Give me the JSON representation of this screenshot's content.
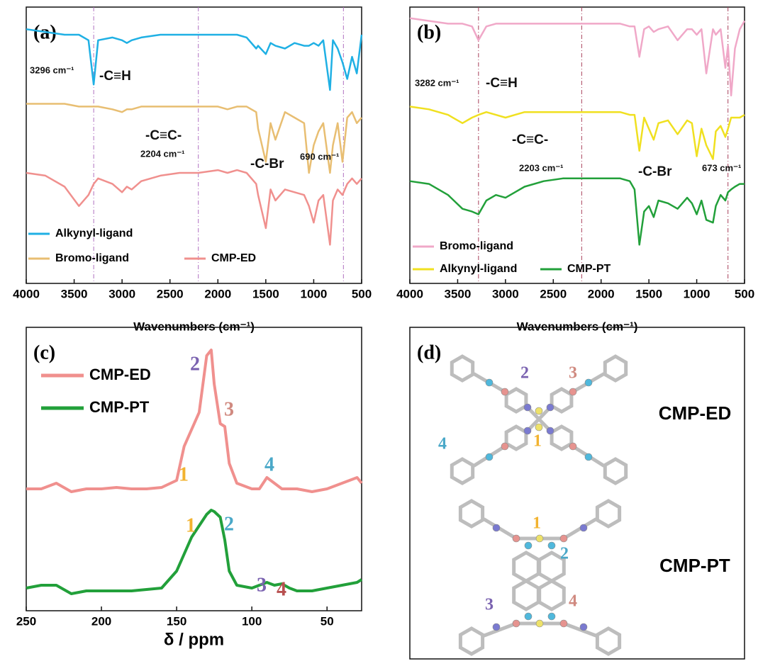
{
  "chart_data": [
    {
      "type": "line",
      "panel_label": "(a)",
      "x_label": "Wavenumbers (cm⁻¹)",
      "x": [
        4000,
        3800,
        3600,
        3450,
        3350,
        3296,
        3250,
        3100,
        3000,
        2950,
        2900,
        2800,
        2600,
        2400,
        2204,
        2000,
        1900,
        1800,
        1700,
        1600,
        1580,
        1500,
        1450,
        1400,
        1300,
        1200,
        1100,
        1050,
        1000,
        950,
        900,
        830,
        800,
        750,
        700,
        650,
        600,
        550,
        500
      ],
      "xlim": [
        4000,
        500
      ],
      "ylim": [
        0,
        100
      ],
      "xticks": [
        4000,
        3500,
        3000,
        2500,
        2000,
        1500,
        1000,
        500
      ],
      "series": [
        {
          "name": "Alkynyl-ligand",
          "color": "#1fb0e4",
          "values": [
            92,
            91,
            90,
            90,
            88,
            72,
            88,
            89,
            88,
            87,
            88,
            89,
            90,
            90,
            90,
            90,
            90,
            90,
            89,
            85,
            86,
            83,
            87,
            86,
            85,
            87,
            86,
            86,
            87,
            86,
            88,
            70,
            88,
            85,
            80,
            74,
            82,
            76,
            90
          ]
        },
        {
          "name": "Bromo-ligand",
          "color": "#e8be72",
          "values": [
            65,
            65,
            65,
            64,
            64,
            64,
            64,
            63,
            62,
            63,
            63,
            64,
            64,
            64,
            64,
            64,
            63,
            64,
            64,
            62,
            56,
            44,
            58,
            52,
            62,
            60,
            58,
            40,
            50,
            55,
            58,
            40,
            50,
            58,
            44,
            60,
            62,
            58,
            60
          ]
        },
        {
          "name": "CMP-ED",
          "color": "#f0908e",
          "values": [
            40,
            39,
            35,
            28,
            32,
            36,
            38,
            36,
            33,
            35,
            34,
            37,
            39,
            40,
            40,
            41,
            40,
            41,
            40,
            36,
            32,
            20,
            34,
            30,
            34,
            33,
            32,
            28,
            22,
            30,
            32,
            14,
            30,
            34,
            32,
            36,
            38,
            36,
            38
          ]
        }
      ],
      "vlines": [
        3296,
        2204,
        690
      ],
      "annotations": [
        {
          "text": "3296 cm⁻¹"
        },
        {
          "text": "-C≡H"
        },
        {
          "text": "-C≡C-"
        },
        {
          "text": "2204 cm⁻¹"
        },
        {
          "text": "-C-Br"
        },
        {
          "text": "690 cm⁻¹"
        }
      ]
    },
    {
      "type": "line",
      "panel_label": "(b)",
      "x_label": "Wavenumbers (cm⁻¹)",
      "x": [
        4000,
        3800,
        3600,
        3450,
        3350,
        3282,
        3200,
        3100,
        3000,
        2900,
        2800,
        2600,
        2400,
        2203,
        2000,
        1900,
        1800,
        1700,
        1650,
        1600,
        1550,
        1500,
        1450,
        1400,
        1300,
        1200,
        1100,
        1050,
        1000,
        950,
        900,
        830,
        800,
        750,
        700,
        673,
        640,
        600,
        550,
        500
      ],
      "xlim": [
        4000,
        500
      ],
      "ylim": [
        0,
        100
      ],
      "xticks": [
        4000,
        3500,
        3000,
        2500,
        2000,
        1500,
        1000,
        500
      ],
      "series": [
        {
          "name": "Bromo-ligand",
          "color": "#f0a8c8",
          "values": [
            96,
            95,
            94,
            94,
            93,
            88,
            93,
            94,
            94,
            94,
            94,
            94,
            94,
            94,
            94,
            94,
            94,
            93,
            93,
            82,
            92,
            93,
            91,
            92,
            93,
            88,
            92,
            92,
            90,
            92,
            76,
            92,
            90,
            92,
            78,
            86,
            68,
            85,
            92,
            95
          ]
        },
        {
          "name": "Alkynyl-ligand",
          "color": "#f0e020",
          "values": [
            64,
            63,
            61,
            58,
            60,
            61,
            62,
            61,
            60,
            61,
            62,
            62,
            62,
            62,
            62,
            62,
            62,
            61,
            61,
            48,
            60,
            56,
            52,
            58,
            59,
            54,
            59,
            58,
            46,
            56,
            50,
            45,
            55,
            57,
            53,
            56,
            60,
            60,
            60,
            61
          ]
        },
        {
          "name": "CMP-PT",
          "color": "#22a03a",
          "values": [
            37,
            36,
            32,
            27,
            26,
            25,
            30,
            32,
            31,
            33,
            35,
            37,
            38,
            38,
            38,
            38,
            38,
            37,
            34,
            14,
            26,
            28,
            24,
            30,
            29,
            27,
            31,
            29,
            25,
            30,
            23,
            22,
            28,
            32,
            30,
            33,
            34,
            35,
            36,
            36
          ]
        }
      ],
      "vlines": [
        3282,
        2203,
        673
      ],
      "annotations": [
        {
          "text": "3282 cm⁻¹"
        },
        {
          "text": "-C≡H"
        },
        {
          "text": "-C≡C-"
        },
        {
          "text": "2203 cm⁻¹"
        },
        {
          "text": "-C-Br"
        },
        {
          "text": "673 cm⁻¹"
        }
      ]
    },
    {
      "type": "line",
      "panel_label": "(c)",
      "x_label": "δ / ppm",
      "x": [
        250,
        240,
        230,
        220,
        210,
        200,
        190,
        180,
        170,
        160,
        150,
        145,
        140,
        135,
        130,
        127,
        125,
        121,
        118,
        115,
        110,
        100,
        95,
        90,
        85,
        80,
        75,
        70,
        60,
        50,
        40,
        30,
        27
      ],
      "xlim": [
        250,
        27
      ],
      "ylim": [
        0,
        100
      ],
      "xticks": [
        250,
        200,
        150,
        100,
        50
      ],
      "series": [
        {
          "name": "CMP-ED",
          "color": "#f0908e",
          "values": [
            43,
            43,
            45,
            42,
            43,
            43,
            43.5,
            43,
            43,
            43.5,
            46,
            58,
            64,
            70,
            90,
            92,
            80,
            66,
            65,
            52,
            45,
            43,
            43,
            47,
            45,
            43,
            43,
            43,
            42,
            43,
            45,
            47,
            45
          ]
        },
        {
          "name": "CMP-PT",
          "color": "#22a03a",
          "values": [
            8,
            9,
            9,
            6,
            7,
            7,
            7,
            7,
            7.5,
            8,
            14,
            20,
            26,
            30,
            34,
            35.5,
            35,
            33,
            25,
            14,
            9,
            8,
            9,
            10,
            9,
            9.5,
            8,
            7,
            7,
            8,
            9,
            10,
            11
          ]
        }
      ],
      "annotations": [
        {
          "text": "1",
          "color": "#f2b330"
        },
        {
          "text": "2",
          "color": "#7a62b0"
        },
        {
          "text": "3",
          "color": "#d08a80"
        },
        {
          "text": "4",
          "color": "#4aa8c8"
        },
        {
          "text": "1",
          "color": "#f2b330"
        },
        {
          "text": "2",
          "color": "#4aa8c8"
        },
        {
          "text": "3",
          "color": "#7a62b0"
        },
        {
          "text": "4",
          "color": "#b85050"
        }
      ]
    }
  ],
  "diagram": {
    "panel_label": "(d)",
    "structures": [
      {
        "name": "CMP-ED",
        "site_labels": [
          {
            "text": "1",
            "color": "#f2b330"
          },
          {
            "text": "2",
            "color": "#7a62b0"
          },
          {
            "text": "3",
            "color": "#d08a80"
          },
          {
            "text": "4",
            "color": "#4aa8c8"
          }
        ]
      },
      {
        "name": "CMP-PT",
        "site_labels": [
          {
            "text": "1",
            "color": "#f2b330"
          },
          {
            "text": "2",
            "color": "#4aa8c8"
          },
          {
            "text": "3",
            "color": "#7a62b0"
          },
          {
            "text": "4",
            "color": "#d08a80"
          }
        ]
      }
    ]
  }
}
